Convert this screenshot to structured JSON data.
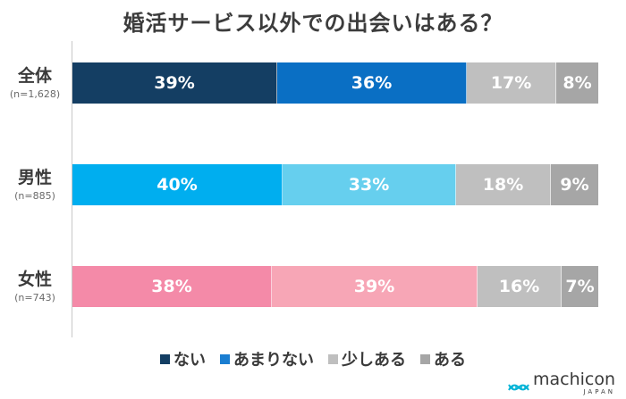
{
  "chart_data": {
    "type": "bar",
    "orientation": "horizontal-stacked-100",
    "title": "婚活サービス以外での出会いはある？",
    "categories": [
      {
        "label": "全体",
        "n": "(n=1,628)"
      },
      {
        "label": "男性",
        "n": "(n=885)"
      },
      {
        "label": "女性",
        "n": "(n=743)"
      }
    ],
    "series": [
      {
        "name": "ない",
        "values": [
          39,
          40,
          38
        ],
        "data_labels": [
          "39%",
          "40%",
          "38%"
        ]
      },
      {
        "name": "あまりない",
        "values": [
          36,
          33,
          39
        ],
        "data_labels": [
          "36%",
          "33%",
          "39%"
        ]
      },
      {
        "name": "少しある",
        "values": [
          17,
          18,
          16
        ],
        "data_labels": [
          "17%",
          "18%",
          "16%"
        ]
      },
      {
        "name": "ある",
        "values": [
          8,
          9,
          7
        ],
        "data_labels": [
          "8%",
          "9%",
          "7%"
        ]
      }
    ],
    "segment_colors": [
      [
        "#143e63",
        "#0a6fc4",
        "#bfbfbf",
        "#a6a6a6"
      ],
      [
        "#00aeef",
        "#66cfee",
        "#bfbfbf",
        "#a6a6a6"
      ],
      [
        "#f48aa8",
        "#f7a6b6",
        "#bfbfbf",
        "#a6a6a6"
      ]
    ],
    "legend": {
      "placement": "bottom",
      "items": [
        {
          "label": "ない",
          "color": "#143e63"
        },
        {
          "label": "あまりない",
          "color": "#1a7ed1"
        },
        {
          "label": "少しある",
          "color": "#bfbfbf"
        },
        {
          "label": "ある",
          "color": "#a6a6a6"
        }
      ]
    },
    "xlim": [
      0,
      100
    ],
    "grid": false
  },
  "logo": {
    "word": "machicon",
    "sub": "JAPAN",
    "icon": "dna-helix-icon",
    "color": "#00b3d6"
  }
}
